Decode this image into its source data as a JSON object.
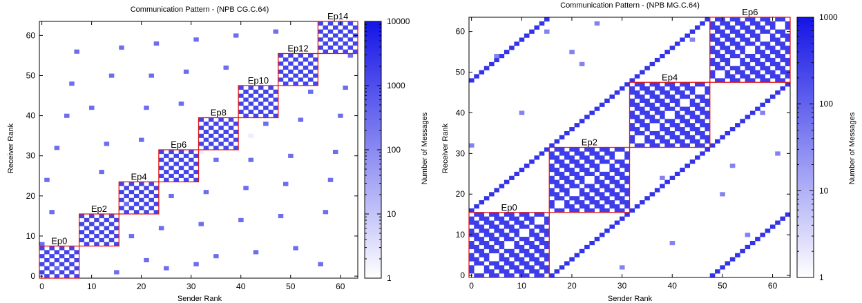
{
  "chart_data": [
    {
      "type": "heatmap",
      "title": "Communication Pattern - (NPB CG.C.64)",
      "xlabel": "Sender Rank",
      "ylabel": "Receiver Rank",
      "xlim": [
        0,
        63
      ],
      "ylim": [
        0,
        63
      ],
      "xticks": [
        0,
        10,
        20,
        30,
        40,
        50,
        60
      ],
      "yticks": [
        0,
        10,
        20,
        30,
        40,
        50,
        60
      ],
      "colorbar": {
        "label": "Number of Messages",
        "scale": "log",
        "min": 1,
        "max": 10000,
        "ticks": [
          1,
          10,
          100,
          1000,
          10000
        ],
        "color_low": "#ffffff",
        "color_high": "#1414e6"
      },
      "epochs": [
        {
          "name": "Ep0",
          "start": 0,
          "size": 8
        },
        {
          "name": "Ep2",
          "start": 8,
          "size": 8
        },
        {
          "name": "Ep4",
          "start": 16,
          "size": 8
        },
        {
          "name": "Ep6",
          "start": 24,
          "size": 8
        },
        {
          "name": "Ep8",
          "start": 32,
          "size": 8
        },
        {
          "name": "Ep10",
          "start": 40,
          "size": 8
        },
        {
          "name": "Ep12",
          "start": 48,
          "size": 8
        },
        {
          "name": "Ep14",
          "start": 56,
          "size": 8
        }
      ],
      "cells": [
        {
          "pattern": "blockdiag",
          "block": 8,
          "value": 1500
        },
        {
          "x": 0,
          "y": 8,
          "value": 300
        },
        {
          "x": 1,
          "y": 24,
          "value": 300
        },
        {
          "x": 2,
          "y": 16,
          "value": 300
        },
        {
          "x": 3,
          "y": 32,
          "value": 300
        },
        {
          "x": 3,
          "y": 2,
          "value": 300
        },
        {
          "x": 5,
          "y": 40,
          "value": 300
        },
        {
          "x": 6,
          "y": 48,
          "value": 300
        },
        {
          "x": 7,
          "y": 56,
          "value": 300
        },
        {
          "x": 10,
          "y": 42,
          "value": 300
        },
        {
          "x": 12,
          "y": 26,
          "value": 300
        },
        {
          "x": 13,
          "y": 33,
          "value": 300
        },
        {
          "x": 14,
          "y": 50,
          "value": 300
        },
        {
          "x": 16,
          "y": 57,
          "value": 300
        },
        {
          "x": 15,
          "y": 1,
          "value": 300
        },
        {
          "x": 17,
          "y": 18,
          "value": 300
        },
        {
          "x": 18,
          "y": 10,
          "value": 300
        },
        {
          "x": 20,
          "y": 34,
          "value": 300
        },
        {
          "x": 21,
          "y": 42,
          "value": 300
        },
        {
          "x": 21,
          "y": 4,
          "value": 300
        },
        {
          "x": 22,
          "y": 50,
          "value": 300
        },
        {
          "x": 23,
          "y": 58,
          "value": 300
        },
        {
          "x": 24,
          "y": 12,
          "value": 300
        },
        {
          "x": 25,
          "y": 2,
          "value": 300
        },
        {
          "x": 26,
          "y": 20,
          "value": 300
        },
        {
          "x": 28,
          "y": 43,
          "value": 300
        },
        {
          "x": 29,
          "y": 51,
          "value": 300
        },
        {
          "x": 31,
          "y": 59,
          "value": 300
        },
        {
          "x": 31,
          "y": 3,
          "value": 300
        },
        {
          "x": 32,
          "y": 13,
          "value": 300
        },
        {
          "x": 33,
          "y": 21,
          "value": 300
        },
        {
          "x": 35,
          "y": 29,
          "value": 300
        },
        {
          "x": 35,
          "y": 5,
          "value": 300
        },
        {
          "x": 37,
          "y": 52,
          "value": 300
        },
        {
          "x": 39,
          "y": 60,
          "value": 300
        },
        {
          "x": 40,
          "y": 14,
          "value": 300
        },
        {
          "x": 41,
          "y": 22,
          "value": 300
        },
        {
          "x": 42,
          "y": 29,
          "value": 300
        },
        {
          "x": 43,
          "y": 6,
          "value": 300
        },
        {
          "x": 45,
          "y": 38,
          "value": 300
        },
        {
          "x": 47,
          "y": 61,
          "value": 300
        },
        {
          "x": 48,
          "y": 15,
          "value": 300
        },
        {
          "x": 49,
          "y": 23,
          "value": 300
        },
        {
          "x": 50,
          "y": 30,
          "value": 300
        },
        {
          "x": 51,
          "y": 7,
          "value": 300
        },
        {
          "x": 52,
          "y": 39,
          "value": 300
        },
        {
          "x": 54,
          "y": 46,
          "value": 300
        },
        {
          "x": 56,
          "y": 3,
          "value": 300
        },
        {
          "x": 57,
          "y": 16,
          "value": 300
        },
        {
          "x": 58,
          "y": 24,
          "value": 300
        },
        {
          "x": 59,
          "y": 31,
          "value": 300
        },
        {
          "x": 60,
          "y": 40,
          "value": 300
        },
        {
          "x": 61,
          "y": 47,
          "value": 300
        },
        {
          "x": 62,
          "y": 55,
          "value": 300
        },
        {
          "x": 32,
          "y": 31,
          "value": 2
        },
        {
          "x": 42,
          "y": 35,
          "value": 2
        }
      ]
    },
    {
      "type": "heatmap",
      "title": "Communication Pattern - (NPB MG.C.64)",
      "xlabel": "Sender Rank",
      "ylabel": "Receiver Rank",
      "xlim": [
        0,
        63
      ],
      "ylim": [
        0,
        63
      ],
      "xticks": [
        0,
        10,
        20,
        30,
        40,
        50,
        60
      ],
      "yticks": [
        0,
        10,
        20,
        30,
        40,
        50,
        60
      ],
      "colorbar": {
        "label": "Number of Messages",
        "scale": "log",
        "min": 1,
        "max": 1000,
        "ticks": [
          1,
          10,
          100,
          1000
        ],
        "color_low": "#ffffff",
        "color_high": "#1414e6"
      },
      "epochs": [
        {
          "name": "Ep0",
          "start": 0,
          "size": 16
        },
        {
          "name": "Ep2",
          "start": 16,
          "size": 16
        },
        {
          "name": "Ep4",
          "start": 32,
          "size": 16
        },
        {
          "name": "Ep6",
          "start": 48,
          "size": 16
        }
      ],
      "cells": [
        {
          "pattern": "diagonals",
          "offsets": [
            16,
            -16,
            48,
            -48
          ],
          "value": 400
        },
        {
          "pattern": "blockdiag",
          "block": 16,
          "value": 300
        },
        {
          "x": 0,
          "y": 32,
          "value": 40
        },
        {
          "x": 10,
          "y": 40,
          "value": 40
        },
        {
          "x": 20,
          "y": 55,
          "value": 40
        },
        {
          "x": 22,
          "y": 52,
          "value": 40
        },
        {
          "x": 25,
          "y": 62,
          "value": 40
        },
        {
          "x": 30,
          "y": 2,
          "value": 40
        },
        {
          "x": 40,
          "y": 8,
          "value": 40
        },
        {
          "x": 50,
          "y": 20,
          "value": 40
        },
        {
          "x": 52,
          "y": 27,
          "value": 40
        },
        {
          "x": 55,
          "y": 10,
          "value": 40
        },
        {
          "x": 61,
          "y": 30,
          "value": 40
        },
        {
          "x": 15,
          "y": 60,
          "value": 40
        },
        {
          "x": 38,
          "y": 24,
          "value": 40
        },
        {
          "x": 44,
          "y": 58,
          "value": 40
        },
        {
          "x": 5,
          "y": 54,
          "value": 40
        },
        {
          "x": 58,
          "y": 40,
          "value": 40
        }
      ]
    }
  ]
}
